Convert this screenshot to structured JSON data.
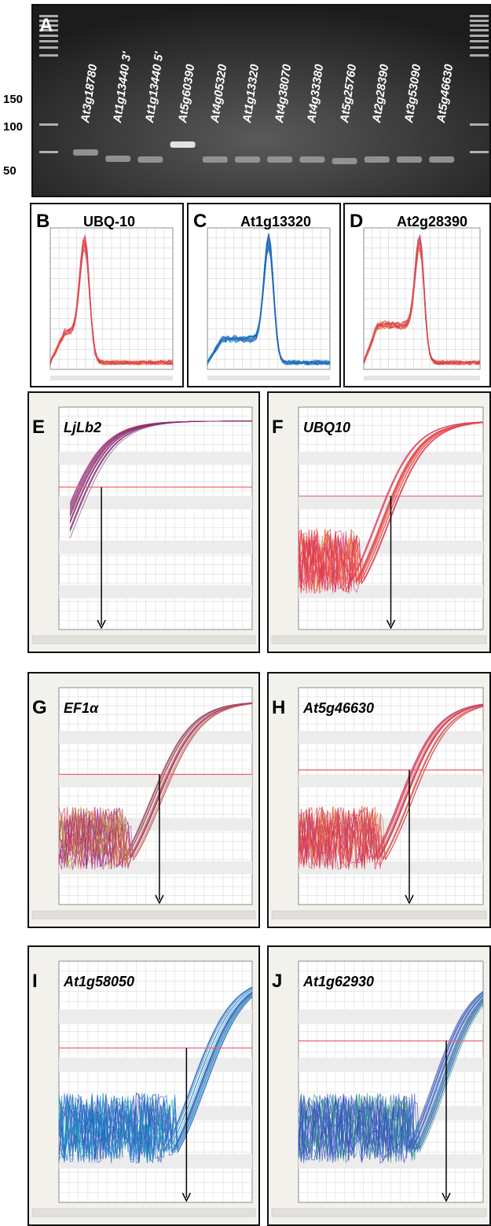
{
  "gel": {
    "label": "A",
    "lanes": [
      "At3g18780",
      "At1g13440 3'",
      "At1g13440 5'",
      "At5g60390",
      "At4g05320",
      "At1g13320",
      "At4g38070",
      "At4g33380",
      "At5g25760",
      "At2g28390",
      "At3g53090",
      "At5g46630"
    ],
    "markers": [
      "150",
      "100",
      "50"
    ]
  },
  "melt_panels": [
    {
      "label": "B",
      "title": "UBQ-10"
    },
    {
      "label": "C",
      "title": "At1g13320"
    },
    {
      "label": "D",
      "title": "At2g28390"
    }
  ],
  "amp_panels": [
    {
      "label": "E",
      "title": "LjLb2"
    },
    {
      "label": "F",
      "title": "UBQ10"
    },
    {
      "label": "G",
      "title": "EF1α"
    },
    {
      "label": "H",
      "title": "At5g46630"
    },
    {
      "label": "I",
      "title": "At1g58050"
    },
    {
      "label": "J",
      "title": "At1g62930"
    }
  ]
}
